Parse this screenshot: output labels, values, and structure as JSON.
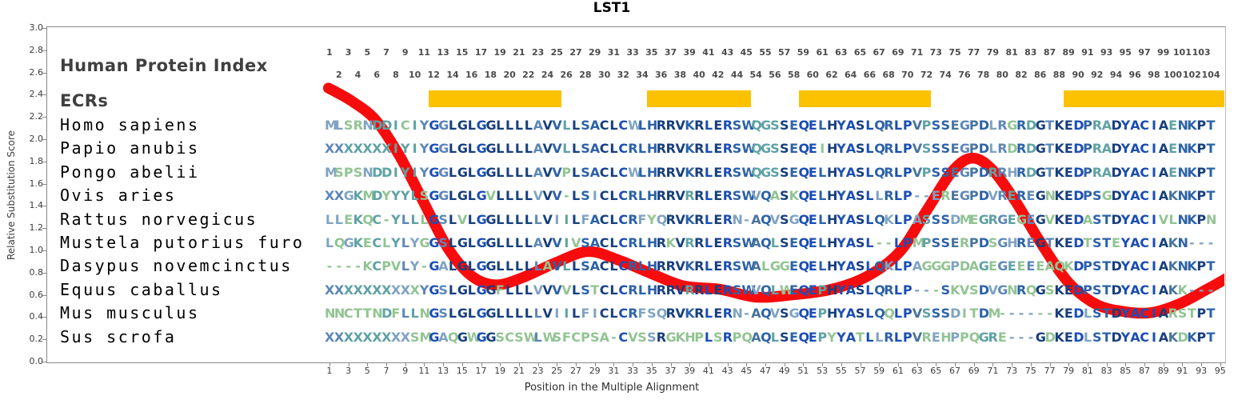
{
  "title": "LST1",
  "header": {
    "human_protein_index_label": "Human Protein Index",
    "ecrs_label": "ECRs"
  },
  "y_axis": {
    "label": "Relative Substitution Score",
    "min": 0.0,
    "max": 3.0,
    "step": 0.2
  },
  "x_axis": {
    "label": "Position in the Multiple Alignment",
    "first_tick": 1,
    "last_tick": 95,
    "step": 2
  },
  "human_index_segments": [
    {
      "col_start": 1,
      "index_start": 1,
      "count": 45
    },
    {
      "col_start": 46,
      "index_start": 54,
      "count": 30
    },
    {
      "col_start": 76,
      "index_start": 86,
      "count": 19
    }
  ],
  "ecr_column_ranges": [
    [
      12,
      25
    ],
    [
      35,
      45
    ],
    [
      51,
      64
    ],
    [
      79,
      95
    ]
  ],
  "alignment": {
    "columns": 94,
    "species": [
      {
        "name": "Homo sapiens",
        "seq": "MLSRNDDICIYGGLGLGGLLLLAVVLLSACLCWLHRRVKRLERSWQGSSEQELHYASLQRLPVPSSEGPDLRGRDGTKEDPRADYACIAENKPT"
      },
      {
        "name": "Papio anubis",
        "seq": "XXXXXXXIYIYGGLGLGGLLLLAVVLLSACLCRLHRRVKRLERSWQGSSEQEIHYASLQRLPVSSSEGPDLRDRDGTKEDPRADYACIAENKPT"
      },
      {
        "name": "Pongo abelii",
        "seq": "MSPSNDDIYIYGGLGLGGLLLLAVVPLSACLCWLHRRVKRLERSWQGSSEQELHYASLQRLPVPSSEGPDRRHRDGTKEDPRADYACIAENKPT"
      },
      {
        "name": "Ovis aries",
        "seq": "XXGKMDYYYLSGGLGLGVLLLLVVV-LSICLCRLHRRVRRLERSWVQASKQELHYASLLRLP--EREGPDVREREGNKEDPSGDYACIAKNKPT"
      },
      {
        "name": "Rattus norvegicus",
        "seq": "LLEKQC-YLLLGSLVLGGLLLLLVIILFACLCRFYQRVKRLERN-AQVSGQELHYASLQKLPASSSDMEGRGEGEGVKEDASTDYACIVLNKPN"
      },
      {
        "name": "Mustela putorius furo",
        "seq": "LQGKECLYLYGGSLGLGGLLLLAVVIVSACLCRLHRKVRRLERSWAQLSEQELHYASL--LPMPSSERPDSGHREGTKEDTSTEYACIAKN---"
      },
      {
        "name": "Dasypus novemcinctus",
        "seq": "----KCPVLY-GALGLGGLLLLLAVLLSACLCRLHRRVKRLERSWALGGEQELHYASLQKLPAGGGPDAGEGEEEEAQKDPSTDYACIAKNKPT"
      },
      {
        "name": "Equus caballus",
        "seq": "XXXXXXXXXXYGSLGLGGFLLLVVVVLSTCLCRLHRRVRRLERSWVQLWEQEPHYASLQRLP---SKVSDVGNRQGSKEDPSTDYACIAKK---"
      },
      {
        "name": "Mus musculus",
        "seq": "NNCTTNDFLLNGSLGLGGLLLLLVIILFICLCRFSQRVKRLERN-AQVSGQEPHYASLQQLPVSSSDITDM------KEDLSTDYACIARSTPT"
      },
      {
        "name": "Sus scrofa",
        "seq": "XXXXXXXXXSMGAQGWGGSCSWLWSFCPSA-CVSSRGKHPLSRPQAQLSEQEPYYATLLRLPVREHPPQGRE---GDKEDLSTDYACIAKDKPT"
      }
    ]
  },
  "colors": {
    "ecr_bar": "#FCC200",
    "curve": "#F60C0C",
    "conserved_100": "#1B4EB3",
    "conserved_80": "#173F7E",
    "conserved_60": "#2C62A8",
    "conserved_50": "#47749F",
    "conserved_40": "#5D87B8",
    "conserved_30": "#5FA2A4",
    "conserved_20": "#7FA3C2",
    "variable": "#92C493",
    "header_text": "#3F3F3F",
    "axis": "#888888"
  },
  "chart_data": {
    "type": "line",
    "title": "LST1",
    "xlabel": "Position in the Multiple Alignment",
    "ylabel": "Relative Substitution Score",
    "xlim": [
      0,
      96
    ],
    "ylim": [
      0.0,
      3.0
    ],
    "grid": false,
    "legend": "none",
    "series": [
      {
        "name": "Relative substitution score",
        "color": "#F60C0C",
        "points": [
          [
            0.9,
            2.46
          ],
          [
            3.4,
            2.34
          ],
          [
            5.9,
            2.17
          ],
          [
            8.4,
            1.85
          ],
          [
            10.9,
            1.44
          ],
          [
            13.5,
            1.02
          ],
          [
            16.0,
            0.77
          ],
          [
            18.6,
            0.69
          ],
          [
            21.5,
            0.76
          ],
          [
            24.9,
            0.89
          ],
          [
            28.3,
            0.99
          ],
          [
            31.6,
            0.91
          ],
          [
            35.0,
            0.79
          ],
          [
            38.4,
            0.68
          ],
          [
            42.2,
            0.65
          ],
          [
            46.0,
            0.58
          ],
          [
            49.8,
            0.6
          ],
          [
            54.0,
            0.65
          ],
          [
            57.8,
            0.77
          ],
          [
            61.2,
            0.99
          ],
          [
            64.1,
            1.37
          ],
          [
            66.7,
            1.71
          ],
          [
            68.8,
            1.83
          ],
          [
            70.9,
            1.73
          ],
          [
            73.4,
            1.44
          ],
          [
            75.9,
            1.09
          ],
          [
            78.9,
            0.72
          ],
          [
            81.8,
            0.52
          ],
          [
            84.8,
            0.45
          ],
          [
            87.7,
            0.44
          ],
          [
            90.7,
            0.52
          ],
          [
            93.6,
            0.65
          ],
          [
            96.1,
            0.77
          ]
        ]
      }
    ],
    "ecr_regions_columns": [
      [
        12,
        25
      ],
      [
        35,
        45
      ],
      [
        51,
        64
      ],
      [
        79,
        95
      ]
    ]
  }
}
